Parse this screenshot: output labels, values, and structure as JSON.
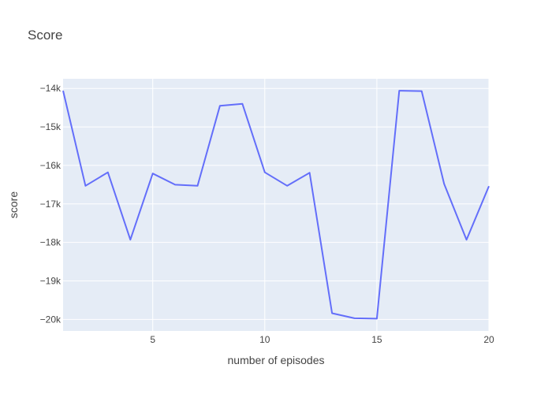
{
  "chart_data": {
    "type": "line",
    "title": "Score",
    "xlabel": "number of episodes",
    "ylabel": "score",
    "xlim": [
      1,
      20
    ],
    "ylim": [
      -20300,
      -13750
    ],
    "grid": true,
    "x_ticks": [
      5,
      10,
      15,
      20
    ],
    "x_tick_labels": [
      "5",
      "10",
      "15",
      "20"
    ],
    "y_ticks": [
      -14000,
      -15000,
      -16000,
      -17000,
      -18000,
      -19000,
      -20000
    ],
    "y_tick_labels": [
      "−14k",
      "−15k",
      "−16k",
      "−17k",
      "−18k",
      "−19k",
      "−20k"
    ],
    "colors": {
      "line": "#636efa",
      "plot_bg": "#e5ecf6",
      "grid": "#ffffff",
      "text": "#444444"
    },
    "series": [
      {
        "x": [
          1,
          2,
          3,
          4,
          5,
          6,
          7,
          8,
          9,
          10,
          11,
          12,
          13,
          14,
          15,
          16,
          17,
          18,
          19,
          20
        ],
        "values": [
          -14060,
          -16530,
          -16180,
          -17930,
          -16210,
          -16500,
          -16530,
          -14450,
          -14400,
          -16180,
          -16530,
          -16190,
          -19840,
          -19970,
          -19980,
          -14060,
          -14070,
          -16480,
          -17930,
          -16540
        ]
      }
    ]
  }
}
